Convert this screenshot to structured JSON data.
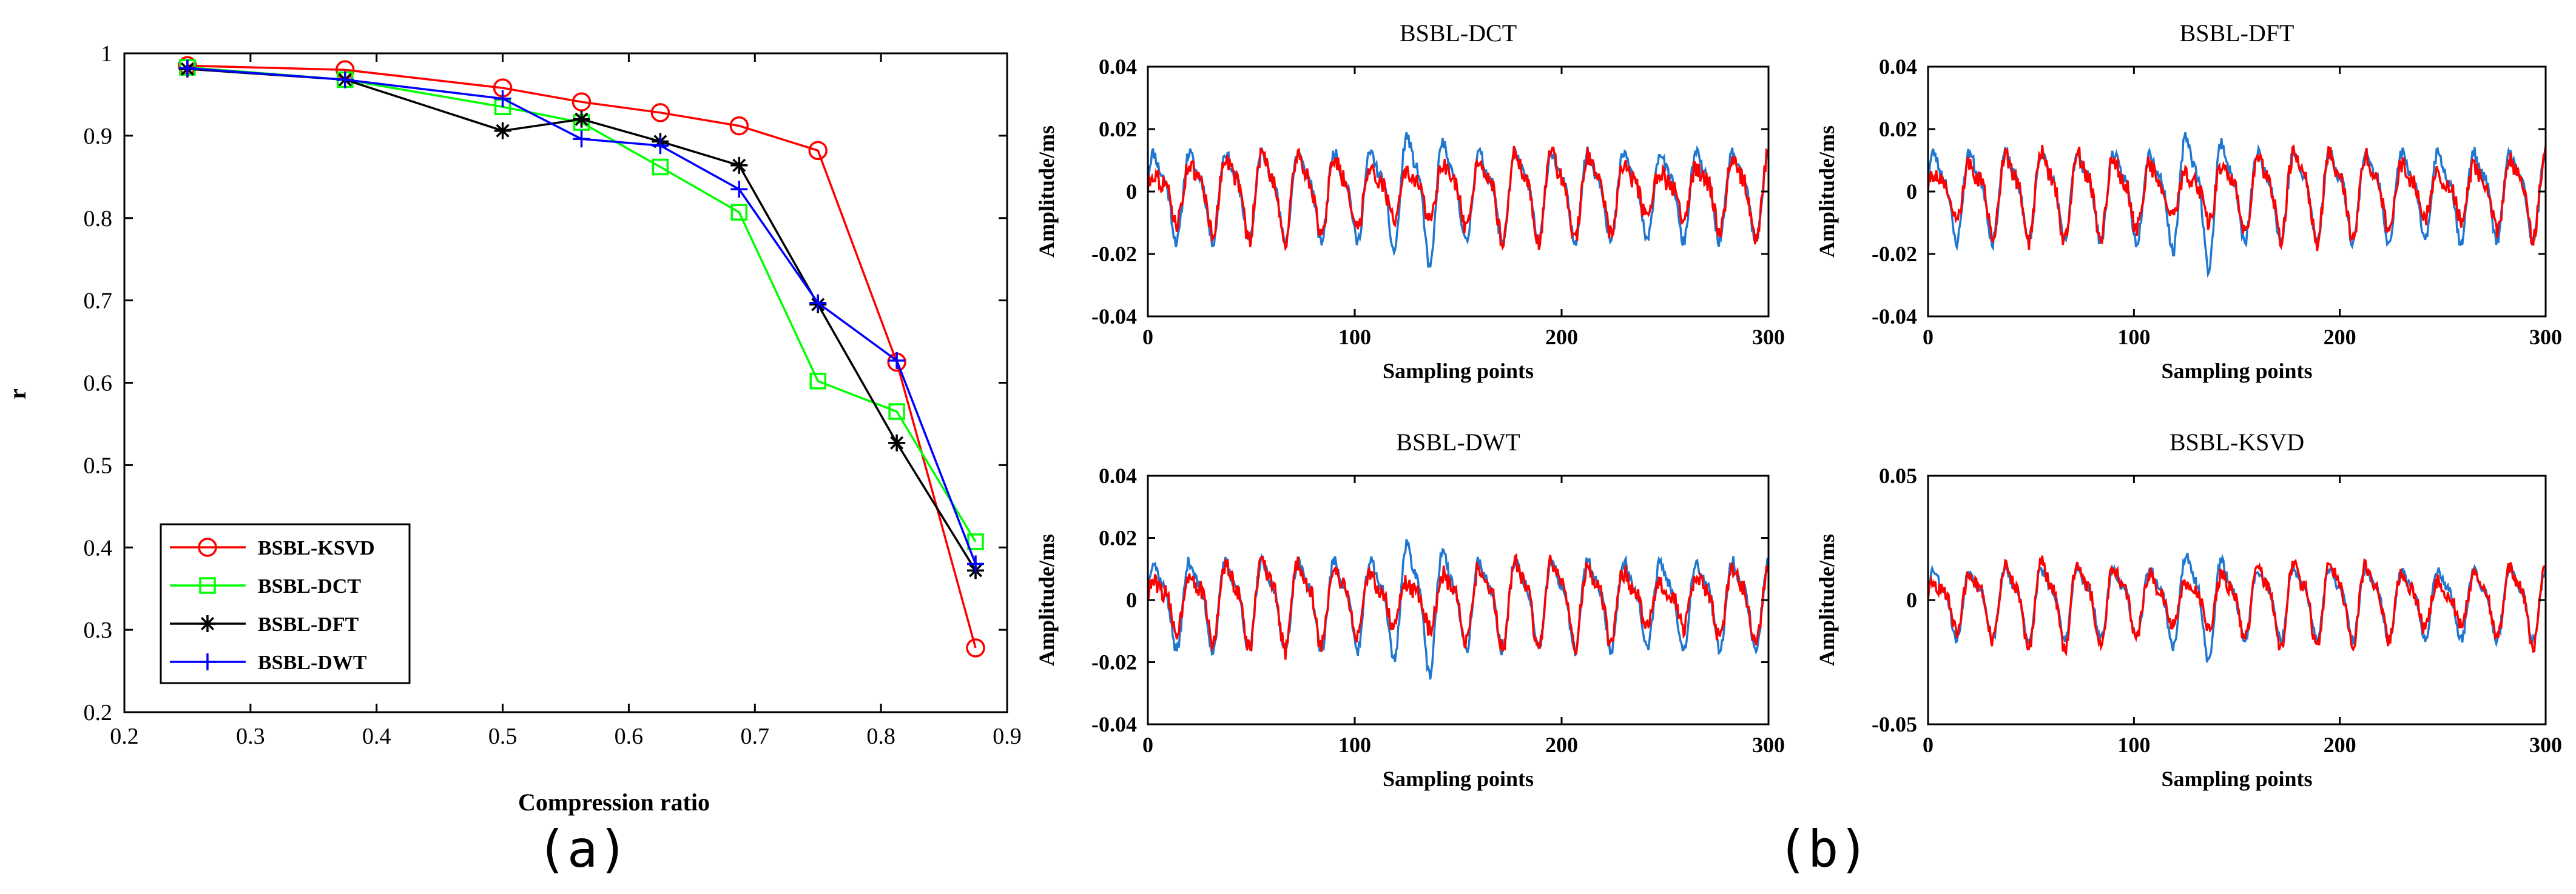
{
  "panel_labels": [
    "(a)",
    "(b)"
  ],
  "chart_data": [
    {
      "type": "line",
      "title": "",
      "xlabel": "Compression ratio",
      "ylabel": "r",
      "xlim": [
        0.2,
        0.9
      ],
      "ylim": [
        0.2,
        1.0
      ],
      "xticks": [
        "0.2",
        "0.3",
        "0.4",
        "0.5",
        "0.6",
        "0.7",
        "0.8",
        "0.9"
      ],
      "yticks": [
        "0.2",
        "0.3",
        "0.4",
        "0.5",
        "0.6",
        "0.7",
        "0.8",
        "0.9",
        "1"
      ],
      "legend_placement": "bottom-left",
      "series": [
        {
          "name": "BSBL-KSVD",
          "color": "#ff0000",
          "marker": "circle",
          "x": [
            0.25,
            0.375,
            0.5,
            0.5625,
            0.625,
            0.6875,
            0.75,
            0.8125,
            0.875
          ],
          "y": [
            0.985,
            0.98,
            0.958,
            0.941,
            0.928,
            0.912,
            0.882,
            0.625,
            0.278
          ]
        },
        {
          "name": "BSBL-DCT",
          "color": "#00ff00",
          "marker": "square",
          "x": [
            0.25,
            0.375,
            0.5,
            0.5625,
            0.625,
            0.6875,
            0.75,
            0.8125,
            0.875
          ],
          "y": [
            0.983,
            0.968,
            0.935,
            0.916,
            0.862,
            0.807,
            0.602,
            0.565,
            0.407
          ]
        },
        {
          "name": "BSBL-DFT",
          "color": "#000000",
          "marker": "star",
          "x": [
            0.25,
            0.375,
            0.5,
            0.5625,
            0.625,
            0.6875,
            0.75,
            0.8125,
            0.875
          ],
          "y": [
            0.981,
            0.968,
            0.906,
            0.92,
            0.893,
            0.864,
            0.695,
            0.527,
            0.372
          ]
        },
        {
          "name": "BSBL-DWT",
          "color": "#0000ff",
          "marker": "plus",
          "x": [
            0.25,
            0.375,
            0.5,
            0.5625,
            0.625,
            0.6875,
            0.75,
            0.8125,
            0.875
          ],
          "y": [
            0.982,
            0.968,
            0.945,
            0.896,
            0.888,
            0.835,
            0.697,
            0.627,
            0.38
          ]
        }
      ]
    },
    {
      "type": "line",
      "title": "BSBL-DCT",
      "xlabel": "Sampling points",
      "ylabel": "Amplitude/ms",
      "xlim": [
        0,
        300
      ],
      "ylim": [
        -0.04,
        0.04
      ],
      "xticks": [
        "0",
        "100",
        "200",
        "300"
      ],
      "yticks": [
        "-0.04",
        "-0.02",
        "0",
        "0.02",
        "0.04"
      ],
      "series_colors": [
        "#1f77d0",
        "#ff0000"
      ],
      "seed": 11
    },
    {
      "type": "line",
      "title": "BSBL-DFT",
      "xlabel": "Sampling points",
      "ylabel": "Amplitude/ms",
      "xlim": [
        0,
        300
      ],
      "ylim": [
        -0.04,
        0.04
      ],
      "xticks": [
        "0",
        "100",
        "200",
        "300"
      ],
      "yticks": [
        "-0.04",
        "-0.02",
        "0",
        "0.02",
        "0.04"
      ],
      "series_colors": [
        "#1f77d0",
        "#ff0000"
      ],
      "seed": 23
    },
    {
      "type": "line",
      "title": "BSBL-DWT",
      "xlabel": "Sampling points",
      "ylabel": "Amplitude/ms",
      "xlim": [
        0,
        300
      ],
      "ylim": [
        -0.04,
        0.04
      ],
      "xticks": [
        "0",
        "100",
        "200",
        "300"
      ],
      "yticks": [
        "-0.04",
        "-0.02",
        "0",
        "0.02",
        "0.04"
      ],
      "series_colors": [
        "#1f77d0",
        "#ff0000"
      ],
      "seed": 37
    },
    {
      "type": "line",
      "title": "BSBL-KSVD",
      "xlabel": "Sampling points",
      "ylabel": "Amplitude/ms",
      "xlim": [
        0,
        300
      ],
      "ylim": [
        -0.05,
        0.05
      ],
      "xticks": [
        "0",
        "100",
        "200",
        "300"
      ],
      "yticks": [
        "-0.05",
        "0",
        "0.05"
      ],
      "series_colors": [
        "#1f77d0",
        "#ff0000"
      ],
      "seed": 53
    }
  ]
}
